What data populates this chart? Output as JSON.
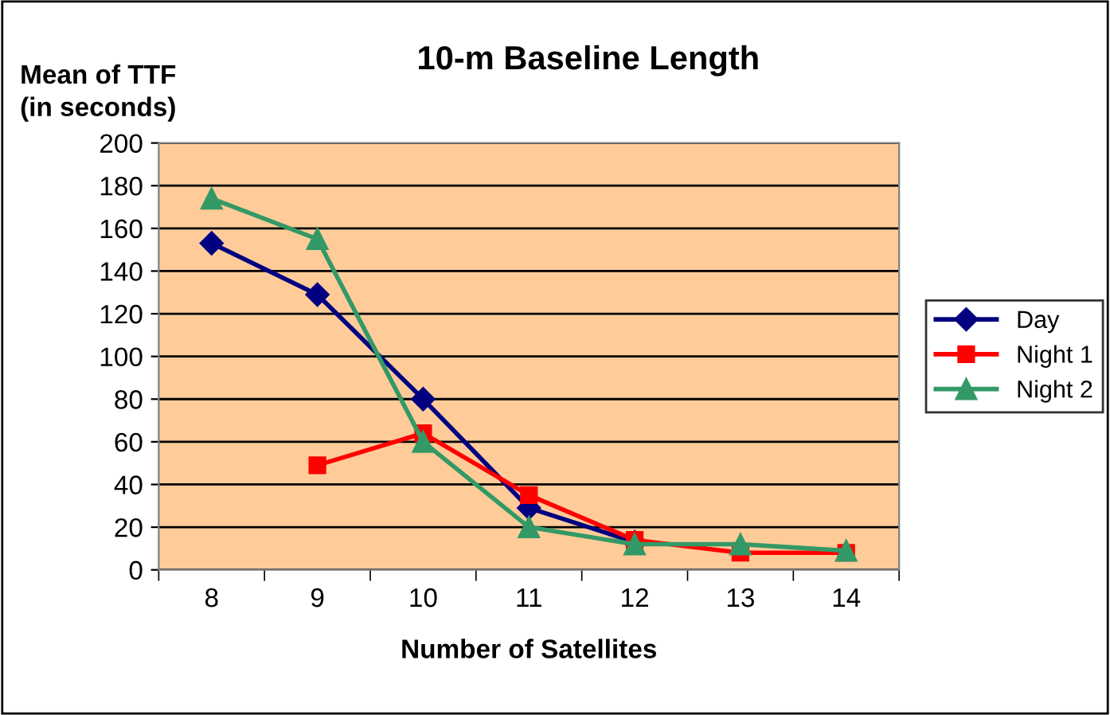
{
  "chart_data": {
    "type": "line",
    "title": "10-m Baseline Length",
    "xlabel": "Number of Satellites",
    "ylabel": "Mean of TTF\n(in seconds)",
    "categories": [
      "8",
      "9",
      "10",
      "11",
      "12",
      "13",
      "14"
    ],
    "series": [
      {
        "name": "Day",
        "color": "#000080",
        "marker": "diamond",
        "values": [
          153,
          129,
          80,
          29,
          13,
          null,
          null
        ]
      },
      {
        "name": "Night 1",
        "color": "#ff0000",
        "marker": "square",
        "values": [
          null,
          49,
          64,
          35,
          14,
          8,
          8
        ]
      },
      {
        "name": "Night 2",
        "color": "#339966",
        "marker": "triangle",
        "values": [
          174,
          155,
          60,
          20,
          12,
          12,
          9
        ]
      }
    ],
    "ylim": [
      0,
      200
    ],
    "yticks": [
      0,
      20,
      40,
      60,
      80,
      100,
      120,
      140,
      160,
      180,
      200
    ],
    "grid": "y",
    "legend": "right",
    "line_style": "solid"
  }
}
